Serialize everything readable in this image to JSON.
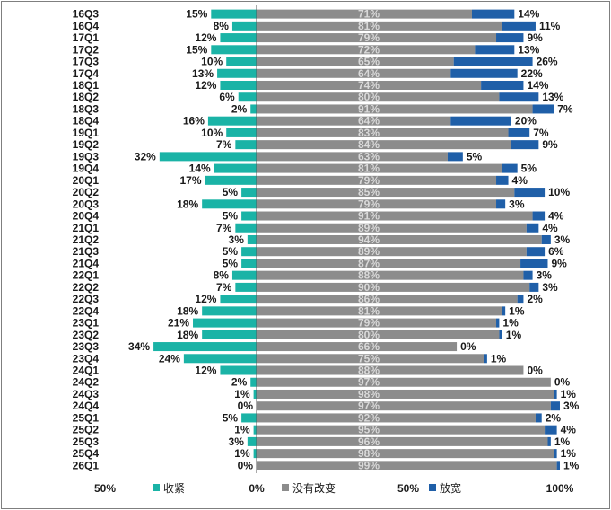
{
  "chart_data": {
    "type": "bar",
    "orientation": "horizontal",
    "stacked": "diverging",
    "categories": [
      "16Q3",
      "16Q4",
      "17Q1",
      "17Q2",
      "17Q3",
      "17Q4",
      "18Q1",
      "18Q2",
      "18Q3",
      "18Q4",
      "19Q1",
      "19Q2",
      "19Q3",
      "19Q4",
      "20Q1",
      "20Q2",
      "20Q3",
      "20Q4",
      "21Q1",
      "21Q2",
      "21Q3",
      "21Q4",
      "22Q1",
      "22Q2",
      "22Q3",
      "22Q4",
      "23Q1",
      "23Q2",
      "23Q3",
      "23Q4",
      "24Q1",
      "24Q2",
      "24Q3",
      "24Q4",
      "25Q1",
      "25Q2",
      "25Q3",
      "25Q4",
      "26Q1"
    ],
    "series": [
      {
        "name": "收紧",
        "color": "#1ab3a6",
        "values": [
          15,
          8,
          12,
          15,
          10,
          13,
          12,
          6,
          2,
          16,
          10,
          7,
          32,
          14,
          17,
          5,
          18,
          5,
          7,
          3,
          5,
          5,
          8,
          7,
          12,
          18,
          21,
          18,
          34,
          24,
          12,
          2,
          1,
          0,
          5,
          1,
          3,
          1,
          0
        ]
      },
      {
        "name": "没有改变",
        "color": "#8c8c8c",
        "values": [
          71,
          81,
          79,
          72,
          65,
          64,
          74,
          80,
          91,
          64,
          83,
          84,
          63,
          81,
          79,
          85,
          79,
          91,
          89,
          94,
          89,
          87,
          88,
          90,
          86,
          81,
          79,
          80,
          66,
          75,
          88,
          97,
          98,
          97,
          92,
          95,
          96,
          98,
          99
        ]
      },
      {
        "name": "放宽",
        "color": "#1f5fa8",
        "values": [
          14,
          11,
          9,
          13,
          26,
          22,
          14,
          13,
          7,
          20,
          7,
          9,
          5,
          5,
          4,
          10,
          3,
          4,
          4,
          3,
          6,
          9,
          3,
          3,
          2,
          1,
          1,
          1,
          0,
          1,
          0,
          0,
          1,
          3,
          2,
          4,
          1,
          1,
          1
        ]
      }
    ],
    "x_ticks": [
      "50%",
      "0%",
      "50%",
      "100%"
    ],
    "xlim": [
      -50,
      100
    ],
    "legend_position": "bottom",
    "grid": false
  }
}
